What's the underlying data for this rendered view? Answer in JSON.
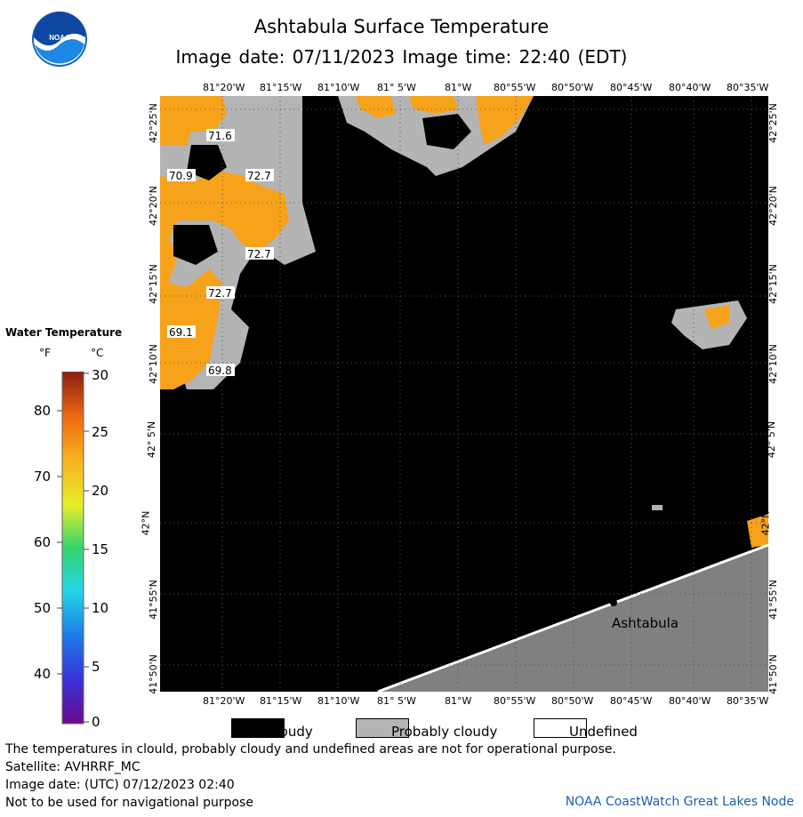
{
  "title": "Ashtabula Surface Temperature",
  "subtitle": "Image date: 07/11/2023     Image time: 22:40 (EDT)",
  "logo_text": "NOAA",
  "map": {
    "lon_labels_top": [
      "81°20'W",
      "81°15'W",
      "81°10'W",
      "81° 5'W",
      "81°W",
      "80°55'W",
      "80°50'W",
      "80°45'W",
      "80°40'W",
      "80°35'W"
    ],
    "lon_labels_bottom": [
      "81°20'W",
      "81°15'W",
      "81°10'W",
      "81° 5'W",
      "81°W",
      "80°55'W",
      "80°50'W",
      "80°45'W",
      "80°40'W",
      "80°35'W"
    ],
    "lat_labels": [
      "42°25'N",
      "42°20'N",
      "42°15'N",
      "42°10'N",
      "42° 5'N",
      "42°N",
      "41°55'N",
      "41°50'N"
    ],
    "city": "Ashtabula",
    "temperature_labels": [
      "71.6",
      "70.9",
      "72.7",
      "72.7",
      "72.7",
      "69.1",
      "69.8"
    ],
    "colors": {
      "cloudy": "#000000",
      "probably_cloudy": "#b4b4b4",
      "land": "#808080",
      "warm_water": "#f7a21b"
    }
  },
  "scale": {
    "title": "Water Temperature",
    "unit_f": "°F",
    "unit_c": "°C",
    "f_ticks": [
      "80",
      "70",
      "60",
      "50",
      "40"
    ],
    "c_ticks": [
      "30",
      "25",
      "20",
      "15",
      "10",
      "5",
      "0"
    ]
  },
  "legend": {
    "cloudy": "Cloudy",
    "probably_cloudy": "Probably cloudy",
    "undefined": "Undefined"
  },
  "notes": {
    "line1": "The temperatures in clould, probably cloudy and undefined areas are not for operational purpose.",
    "satellite": "Satellite: AVHRRF_MC",
    "utc_date": "Image date: (UTC) 07/12/2023  02:40",
    "nav": "Not to be used for navigational purpose",
    "credit": "NOAA CoastWatch Great Lakes Node"
  }
}
